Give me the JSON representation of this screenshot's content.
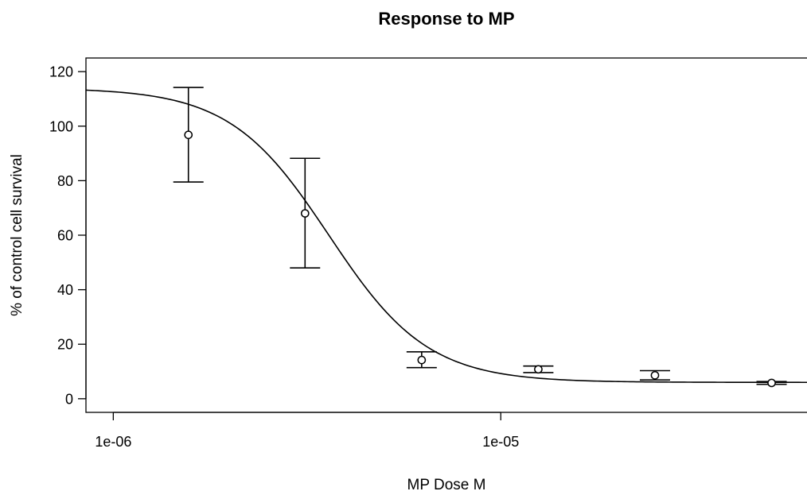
{
  "chart_data": {
    "type": "scatter",
    "title": "Response to MP",
    "xlabel": "MP Dose M",
    "ylabel": "% of control cell survival",
    "x_scale": "log",
    "x_range": [
      8.5e-07,
      6.2e-05
    ],
    "y_range": [
      -5,
      125
    ],
    "x_ticks": [
      {
        "value": 1e-06,
        "label": "1e-06"
      },
      {
        "value": 1e-05,
        "label": "1e-05"
      }
    ],
    "y_ticks": [
      {
        "value": 0,
        "label": "0"
      },
      {
        "value": 20,
        "label": "20"
      },
      {
        "value": 40,
        "label": "40"
      },
      {
        "value": 60,
        "label": "60"
      },
      {
        "value": 80,
        "label": "80"
      },
      {
        "value": 100,
        "label": "100"
      },
      {
        "value": 120,
        "label": "120"
      }
    ],
    "grid": false,
    "legend": "none",
    "points": [
      {
        "x": 1.5625e-06,
        "y": 96.8,
        "y_low": 79.5,
        "y_high": 114.2
      },
      {
        "x": 3.125e-06,
        "y": 68.0,
        "y_low": 48.0,
        "y_high": 88.2
      },
      {
        "x": 6.25e-06,
        "y": 14.2,
        "y_low": 11.4,
        "y_high": 17.2
      },
      {
        "x": 1.25e-05,
        "y": 10.8,
        "y_low": 9.6,
        "y_high": 12.0
      },
      {
        "x": 2.5e-05,
        "y": 8.6,
        "y_low": 6.9,
        "y_high": 10.3
      },
      {
        "x": 5e-05,
        "y": 5.8,
        "y_low": 5.3,
        "y_high": 6.3
      }
    ],
    "fit_curve": {
      "model": "four-parameter logistic",
      "top": 114,
      "bottom": 6,
      "ec50": 3.6e-06,
      "hill": 3.4
    },
    "colors": {
      "line": "#000000",
      "background": "#ffffff"
    }
  }
}
